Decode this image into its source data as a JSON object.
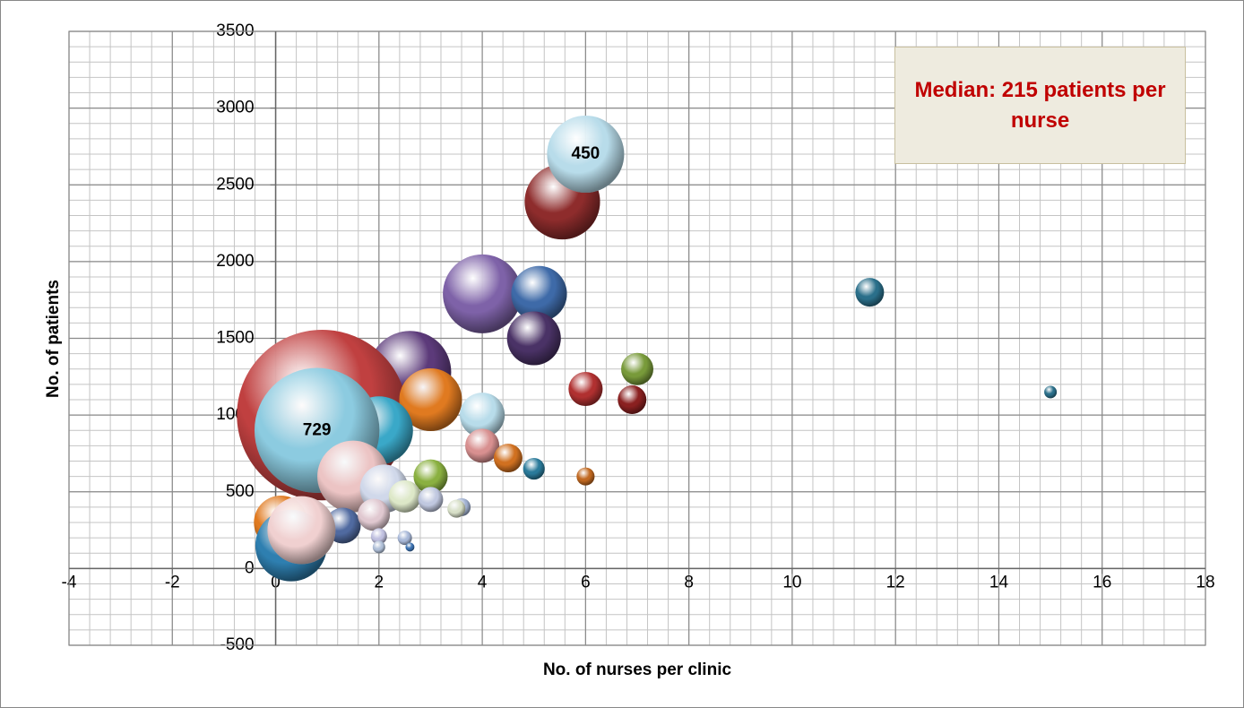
{
  "chart_data": {
    "type": "bubble",
    "xlabel": "No. of nurses per clinic",
    "ylabel": "No. of patients",
    "annotation": "Median: 215 patients per nurse",
    "xlim": [
      -4,
      18
    ],
    "ylim": [
      -500,
      3500
    ],
    "xticks": [
      -4,
      -2,
      0,
      2,
      4,
      6,
      8,
      10,
      12,
      14,
      16,
      18
    ],
    "yticks": [
      -500,
      0,
      500,
      1000,
      1500,
      2000,
      2500,
      3000,
      3500
    ],
    "minor_grid": {
      "x": 0.4,
      "y": 100
    },
    "grid": true,
    "series": [
      {
        "x": [
          5.55,
          6,
          4,
          5.1,
          5,
          11.5,
          15,
          7,
          6,
          6.9,
          2.6,
          0.9,
          3,
          2,
          4,
          0.8,
          1.5,
          4,
          4.5,
          5,
          6,
          3,
          0.1,
          1.3,
          2.1,
          2.5,
          3,
          3.6,
          3.5,
          1.9,
          0.3,
          0.5,
          2.5,
          2.6,
          2,
          2
        ],
        "y": [
          2390,
          2700,
          1790,
          1790,
          1500,
          1800,
          1150,
          1300,
          1170,
          1100,
          1280,
          1000,
          1100,
          900,
          1000,
          900,
          600,
          800,
          720,
          650,
          600,
          600,
          300,
          280,
          520,
          470,
          450,
          400,
          390,
          350,
          150,
          250,
          200,
          140,
          210,
          140
        ],
        "size": [
          440,
          450,
          460,
          325,
          314,
          167,
          73,
          188,
          199,
          167,
          481,
          995,
          366,
          397,
          262,
          729,
          418,
          199,
          167,
          126,
          105,
          199,
          314,
          209,
          282,
          188,
          146,
          105,
          105,
          188,
          418,
          397,
          84,
          52,
          94,
          73
        ],
        "colors": [
          "#8e2c2c",
          "#b8dcea",
          "#7e62a8",
          "#3e6aa8",
          "#4a3266",
          "#2a6f8a",
          "#2a6f8a",
          "#789a3a",
          "#b03030",
          "#8a2020",
          "#5c3a7a",
          "#c04040",
          "#e07a20",
          "#3aa8c8",
          "#b8dcea",
          "#8ccbe0",
          "#ecc4c4",
          "#d89090",
          "#d07020",
          "#2a7a9a",
          "#c06820",
          "#8ab040",
          "#e07a20",
          "#506aa0",
          "#d0d8ea",
          "#dde8c8",
          "#c0c8e0",
          "#a0b0d0",
          "#d8e0c8",
          "#e0c8d0",
          "#2e7fb0",
          "#f0d0d0",
          "#a8b8d8",
          "#3a70b0",
          "#c0c0e0",
          "#b0c0d8"
        ],
        "value_labels": [
          null,
          "450",
          null,
          null,
          null,
          null,
          null,
          null,
          null,
          null,
          null,
          null,
          null,
          null,
          null,
          "729",
          null,
          null,
          null,
          null,
          null,
          null,
          null,
          null,
          null,
          null,
          null,
          null,
          null,
          null,
          null,
          null,
          null,
          null,
          null,
          null
        ]
      }
    ]
  }
}
